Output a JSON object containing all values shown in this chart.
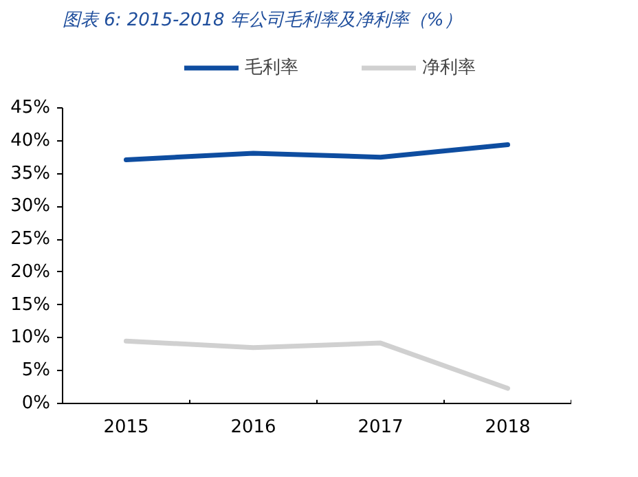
{
  "chart_data": {
    "type": "line",
    "title": "图表 6:  2015-2018 年公司毛利率及净利率（%）",
    "categories": [
      "2015",
      "2016",
      "2017",
      "2018"
    ],
    "series": [
      {
        "name": "毛利率",
        "color": "#0e4da0",
        "values": [
          37.1,
          38.1,
          37.5,
          39.4
        ]
      },
      {
        "name": "净利率",
        "color": "#d0d0d0",
        "values": [
          9.5,
          8.5,
          9.2,
          2.3
        ]
      }
    ],
    "ylim": [
      0,
      45
    ],
    "yticks": [
      {
        "value": 0,
        "label": "0%"
      },
      {
        "value": 5,
        "label": "5%"
      },
      {
        "value": 10,
        "label": "10%"
      },
      {
        "value": 15,
        "label": "15%"
      },
      {
        "value": 20,
        "label": "20%"
      },
      {
        "value": 25,
        "label": "25%"
      },
      {
        "value": 30,
        "label": "30%"
      },
      {
        "value": 35,
        "label": "35%"
      },
      {
        "value": 40,
        "label": "40%"
      },
      {
        "value": 45,
        "label": "45%"
      }
    ],
    "grid": false,
    "legend": "top",
    "marker": "none",
    "line_style": "solid"
  }
}
